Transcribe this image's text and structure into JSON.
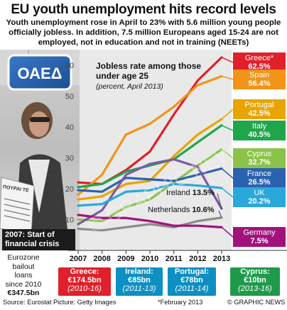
{
  "title": "EU youth unemployment hits record levels",
  "subtitle": "Youth unemployment rose in April to 23% with 5.6 million young people officially jobless. In addition, 7.5 million Europeans aged 15-24 are not employed, not in education and not in training (NEETs)",
  "chart_data": {
    "type": "line",
    "title": "Jobless rate among those under age 25",
    "subtitle": "(percent, April 2013)",
    "xlabel": "",
    "ylabel": "",
    "x": [
      2007,
      2008,
      2009,
      2010,
      2011,
      2012,
      2013
    ],
    "x_tick_labels": [
      "2007",
      "2008",
      "2009",
      "2010",
      "2011",
      "2012",
      "2013"
    ],
    "ylim": [
      0,
      65
    ],
    "y_ticks": [
      10,
      20,
      30,
      40,
      50,
      60
    ],
    "grid": false,
    "series": [
      {
        "name": "Greece",
        "marker": "*",
        "label": "62.5%",
        "color": "#e0202a",
        "values": [
          22.0,
          21.5,
          26.0,
          32.0,
          44.0,
          55.0,
          62.5
        ]
      },
      {
        "name": "Spain",
        "label": "56.4%",
        "color": "#f29418",
        "values": [
          18.0,
          24.5,
          37.5,
          41.0,
          46.5,
          53.5,
          56.4
        ]
      },
      {
        "name": "Portugal",
        "label": "42.5%",
        "color": "#e8a400",
        "values": [
          16.5,
          17.5,
          21.5,
          22.5,
          30.5,
          37.5,
          42.5
        ]
      },
      {
        "name": "Italy",
        "label": "40.5%",
        "color": "#1fa64a",
        "values": [
          20.5,
          21.5,
          25.5,
          27.5,
          29.5,
          35.0,
          40.5
        ]
      },
      {
        "name": "Cyprus",
        "label": "32.7%",
        "color": "#8bc34a",
        "values": [
          10.0,
          9.5,
          14.0,
          16.5,
          22.0,
          27.5,
          32.7
        ]
      },
      {
        "name": "France",
        "label": "26.5%",
        "color": "#2a62b0",
        "values": [
          19.5,
          19.0,
          23.5,
          23.0,
          22.5,
          24.5,
          26.5
        ]
      },
      {
        "name": "Ireland",
        "label": "13.5%",
        "color": "#7b5aa6",
        "values": [
          8.5,
          13.0,
          24.5,
          28.0,
          29.5,
          27.0,
          13.5
        ]
      },
      {
        "name": "UK",
        "label": "20.2%",
        "color": "#29a9d9",
        "values": [
          14.5,
          15.0,
          19.0,
          19.5,
          21.5,
          21.0,
          20.2
        ]
      },
      {
        "name": "Netherlands",
        "label": "10.6%",
        "color": "#8c8c8c",
        "values": [
          7.0,
          6.5,
          7.5,
          8.5,
          7.5,
          9.5,
          10.6
        ]
      },
      {
        "name": "Germany",
        "label": "7.5%",
        "color": "#a2127c",
        "values": [
          11.5,
          10.5,
          10.5,
          9.5,
          8.0,
          8.0,
          7.5
        ]
      }
    ],
    "annotation": "2007: Start of financial crisis"
  },
  "bailouts": {
    "heading": [
      "Eurozone",
      "bailout",
      "loans",
      "since 2010"
    ],
    "total": "€347.5bn",
    "items": [
      {
        "name": "Greece:",
        "amount": "€174.5bn",
        "years": "(2010-16)",
        "color": "#e0202a"
      },
      {
        "name": "Ireland:",
        "amount": "€85bn",
        "years": "(2011-13)",
        "color": "#0d8fc2"
      },
      {
        "name": "Portugal:",
        "amount": "€78bn",
        "years": "(2011-14)",
        "color": "#0d8fc2"
      },
      {
        "name": "Cyprus:",
        "amount": "€10bn",
        "years": "(2013-16)",
        "color": "#1f9a4a"
      }
    ]
  },
  "footer": {
    "source": "Source: Eurostat   Picture: Getty Images",
    "note": "*February 2013",
    "credit": "© GRAPHIC NEWS"
  },
  "photo": {
    "sign_text": "ΟΑΕΔ",
    "newspaper_text": "ΠΟΥΡΑΙ ΤΕ"
  },
  "colors": {
    "panel_bg": "#e6e6e6",
    "accent_red": "#e0202a"
  }
}
